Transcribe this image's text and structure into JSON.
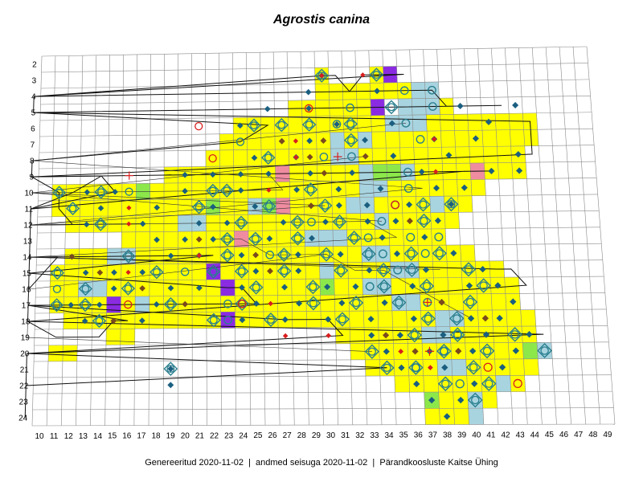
{
  "title": "Agrostis canina",
  "footer": "Genereeritud 2020-11-02  |  andmed seisuga 2020-11-02  |  Pärandkoosluste Kaitse Ühing",
  "grid": {
    "cols": [
      10,
      11,
      12,
      13,
      14,
      15,
      16,
      17,
      18,
      19,
      20,
      21,
      22,
      23,
      24,
      25,
      26,
      27,
      28,
      29,
      30,
      31,
      32,
      33,
      34,
      35,
      36,
      37,
      38,
      39,
      40,
      41,
      42,
      43,
      44,
      45,
      46,
      47,
      48,
      49
    ],
    "rows": [
      2,
      3,
      4,
      5,
      6,
      7,
      8,
      9,
      10,
      11,
      12,
      13,
      14,
      15,
      16,
      17,
      18,
      19,
      20,
      21,
      22,
      23,
      24
    ]
  },
  "colors": {
    "yellow": "#ffff00",
    "lightblue": "#a8d4e0",
    "green": "#8ce84a",
    "purple": "#8a2be2",
    "pink": "#f08ca0",
    "diamond": "#1a5f80",
    "brown_diamond": "#7a4a1e",
    "red_diamond": "#d81e1e",
    "circle": "#2a7f8f"
  },
  "map_data": {
    "yellow_ranges": [
      [
        "3",
        30,
        30
      ],
      [
        "3",
        34,
        35
      ],
      [
        "4",
        30,
        34
      ],
      [
        "4",
        35,
        36
      ],
      [
        "5",
        28,
        34
      ],
      [
        "5",
        36,
        39
      ],
      [
        "6",
        24,
        38
      ],
      [
        "6",
        39,
        45
      ],
      [
        "7",
        23,
        43
      ],
      [
        "7",
        44,
        45
      ],
      [
        "8",
        22,
        44
      ],
      [
        "9",
        19,
        44
      ],
      [
        "10",
        11,
        41
      ],
      [
        "11",
        11,
        40
      ],
      [
        "12",
        12,
        39
      ],
      [
        "13",
        16,
        38
      ],
      [
        "14",
        12,
        40
      ],
      [
        "15",
        11,
        42
      ],
      [
        "16",
        11,
        43
      ],
      [
        "17",
        11,
        43
      ],
      [
        "18",
        12,
        44
      ],
      [
        "19",
        15,
        16
      ],
      [
        "19",
        31,
        44
      ],
      [
        "20",
        11,
        12
      ],
      [
        "20",
        32,
        45
      ],
      [
        "21",
        33,
        44
      ],
      [
        "22",
        35,
        43
      ],
      [
        "23",
        37,
        41
      ],
      [
        "24",
        37,
        39
      ]
    ],
    "lightblue_cells": [
      [
        "4",
        37
      ],
      [
        "4",
        38
      ],
      [
        "5",
        36
      ],
      [
        "5",
        37
      ],
      [
        "5",
        38
      ],
      [
        "6",
        35
      ],
      [
        "6",
        36
      ],
      [
        "6",
        37
      ],
      [
        "7",
        31
      ],
      [
        "7",
        33
      ],
      [
        "8",
        31
      ],
      [
        "8",
        32
      ],
      [
        "9",
        33
      ],
      [
        "9",
        34
      ],
      [
        "9",
        35
      ],
      [
        "9",
        36
      ],
      [
        "10",
        17
      ],
      [
        "10",
        33
      ],
      [
        "10",
        34
      ],
      [
        "11",
        25
      ],
      [
        "11",
        32
      ],
      [
        "11",
        33
      ],
      [
        "11",
        38
      ],
      [
        "12",
        20
      ],
      [
        "12",
        21
      ],
      [
        "12",
        34
      ],
      [
        "13",
        29
      ],
      [
        "13",
        30
      ],
      [
        "13",
        31
      ],
      [
        "14",
        15
      ],
      [
        "14",
        16
      ],
      [
        "14",
        33
      ],
      [
        "14",
        34
      ],
      [
        "15",
        30
      ],
      [
        "15",
        35
      ],
      [
        "15",
        36
      ],
      [
        "16",
        13
      ],
      [
        "16",
        14
      ],
      [
        "16",
        33
      ],
      [
        "16",
        34
      ],
      [
        "17",
        17
      ],
      [
        "17",
        35
      ],
      [
        "17",
        36
      ],
      [
        "18",
        38
      ],
      [
        "18",
        39
      ],
      [
        "19",
        37
      ],
      [
        "19",
        38
      ],
      [
        "20",
        44
      ],
      [
        "20",
        45
      ],
      [
        "21",
        38
      ],
      [
        "21",
        39
      ],
      [
        "22",
        42
      ],
      [
        "23",
        40
      ],
      [
        "24",
        40
      ]
    ],
    "green_cells": [
      [
        "9",
        34
      ],
      [
        "9",
        35
      ],
      [
        "11",
        22
      ],
      [
        "11",
        26
      ],
      [
        "10",
        17
      ],
      [
        "16",
        30
      ],
      [
        "20",
        44
      ],
      [
        "23",
        37
      ]
    ],
    "purple_cells": [
      [
        "3",
        35
      ],
      [
        "5",
        34
      ],
      [
        "15",
        22
      ],
      [
        "16",
        23
      ],
      [
        "17",
        15
      ],
      [
        "18",
        23
      ]
    ],
    "pink_cells": [
      [
        "9",
        27
      ],
      [
        "11",
        27
      ],
      [
        "13",
        24
      ],
      [
        "9",
        41
      ]
    ],
    "diamond_cells": [
      [
        "3",
        30
      ],
      [
        "4",
        29
      ],
      [
        "4",
        34
      ],
      [
        "5",
        26
      ],
      [
        "5",
        29
      ],
      [
        "5",
        40
      ],
      [
        "5",
        44
      ],
      [
        "6",
        24
      ],
      [
        "6",
        31
      ],
      [
        "6",
        35
      ],
      [
        "6",
        42
      ],
      [
        "7",
        27
      ],
      [
        "7",
        29
      ],
      [
        "7",
        33
      ],
      [
        "7",
        38
      ],
      [
        "7",
        41
      ],
      [
        "8",
        25
      ],
      [
        "8",
        28
      ],
      [
        "8",
        35
      ],
      [
        "8",
        39
      ],
      [
        "8",
        44
      ],
      [
        "9",
        20
      ],
      [
        "9",
        22
      ],
      [
        "9",
        24
      ],
      [
        "9",
        26
      ],
      [
        "9",
        29
      ],
      [
        "9",
        32
      ],
      [
        "9",
        37
      ],
      [
        "9",
        42
      ],
      [
        "9",
        44
      ],
      [
        "10",
        13
      ],
      [
        "10",
        15
      ],
      [
        "10",
        20
      ],
      [
        "10",
        24
      ],
      [
        "10",
        28
      ],
      [
        "10",
        31
      ],
      [
        "10",
        34
      ],
      [
        "10",
        38
      ],
      [
        "10",
        40
      ],
      [
        "11",
        14
      ],
      [
        "11",
        18
      ],
      [
        "11",
        22
      ],
      [
        "11",
        25
      ],
      [
        "11",
        29
      ],
      [
        "11",
        31
      ],
      [
        "11",
        33
      ],
      [
        "11",
        36
      ],
      [
        "11",
        39
      ],
      [
        "12",
        13
      ],
      [
        "12",
        17
      ],
      [
        "12",
        21
      ],
      [
        "12",
        23
      ],
      [
        "12",
        27
      ],
      [
        "12",
        30
      ],
      [
        "12",
        33
      ],
      [
        "12",
        35
      ],
      [
        "12",
        38
      ],
      [
        "13",
        18
      ],
      [
        "13",
        20
      ],
      [
        "13",
        22
      ],
      [
        "13",
        26
      ],
      [
        "13",
        29
      ],
      [
        "13",
        34
      ],
      [
        "13",
        37
      ],
      [
        "14",
        12
      ],
      [
        "14",
        19
      ],
      [
        "14",
        21
      ],
      [
        "14",
        24
      ],
      [
        "14",
        28
      ],
      [
        "14",
        31
      ],
      [
        "14",
        35
      ],
      [
        "14",
        39
      ],
      [
        "15",
        13
      ],
      [
        "15",
        15
      ],
      [
        "15",
        17
      ],
      [
        "15",
        25
      ],
      [
        "15",
        28
      ],
      [
        "15",
        33
      ],
      [
        "15",
        37
      ],
      [
        "15",
        41
      ],
      [
        "16",
        15
      ],
      [
        "16",
        19
      ],
      [
        "16",
        21
      ],
      [
        "16",
        24
      ],
      [
        "16",
        27
      ],
      [
        "16",
        30
      ],
      [
        "16",
        32
      ],
      [
        "16",
        36
      ],
      [
        "16",
        40
      ],
      [
        "16",
        42
      ],
      [
        "17",
        12
      ],
      [
        "17",
        14
      ],
      [
        "17",
        18
      ],
      [
        "17",
        25
      ],
      [
        "17",
        28
      ],
      [
        "17",
        31
      ],
      [
        "17",
        34
      ],
      [
        "17",
        38
      ],
      [
        "17",
        43
      ],
      [
        "18",
        13
      ],
      [
        "18",
        17
      ],
      [
        "18",
        24
      ],
      [
        "18",
        27
      ],
      [
        "18",
        30
      ],
      [
        "18",
        33
      ],
      [
        "18",
        36
      ],
      [
        "18",
        40
      ],
      [
        "18",
        42
      ],
      [
        "19",
        33
      ],
      [
        "19",
        35
      ],
      [
        "19",
        38
      ],
      [
        "19",
        41
      ],
      [
        "19",
        44
      ],
      [
        "20",
        34
      ],
      [
        "20",
        37
      ],
      [
        "20",
        40
      ],
      [
        "20",
        43
      ],
      [
        "21",
        35
      ],
      [
        "21",
        38
      ],
      [
        "21",
        42
      ],
      [
        "22",
        36
      ],
      [
        "22",
        40
      ],
      [
        "23",
        37
      ],
      [
        "23",
        39
      ],
      [
        "24",
        38
      ],
      [
        "21",
        19
      ],
      [
        "22",
        19
      ]
    ],
    "brown_cells": [
      [
        "7",
        27
      ],
      [
        "7",
        30
      ],
      [
        "8",
        29
      ],
      [
        "8",
        33
      ],
      [
        "9",
        30
      ],
      [
        "11",
        29
      ],
      [
        "12",
        36
      ],
      [
        "13",
        21
      ],
      [
        "14",
        12
      ],
      [
        "15",
        14
      ],
      [
        "16",
        17
      ],
      [
        "17",
        20
      ],
      [
        "18",
        15
      ],
      [
        "19",
        34
      ],
      [
        "20",
        36
      ],
      [
        "14",
        25
      ],
      [
        "15",
        26
      ],
      [
        "17",
        38
      ],
      [
        "18",
        41
      ],
      [
        "20",
        39
      ]
    ],
    "red_cells": [
      [
        "3",
        30
      ],
      [
        "3",
        33
      ],
      [
        "7",
        28
      ],
      [
        "8",
        28
      ],
      [
        "10",
        26
      ],
      [
        "11",
        16
      ],
      [
        "12",
        16
      ],
      [
        "14",
        21
      ],
      [
        "15",
        16
      ],
      [
        "17",
        26
      ],
      [
        "19",
        27
      ],
      [
        "19",
        30
      ],
      [
        "20",
        35
      ],
      [
        "21",
        37
      ],
      [
        "7",
        38
      ],
      [
        "9",
        38
      ]
    ],
    "ring_cells": [
      [
        "3",
        30
      ],
      [
        "3",
        34
      ],
      [
        "5",
        35
      ],
      [
        "6",
        25
      ],
      [
        "6",
        27
      ],
      [
        "6",
        29
      ],
      [
        "6",
        32
      ],
      [
        "7",
        32
      ],
      [
        "8",
        26
      ],
      [
        "10",
        11
      ],
      [
        "10",
        14
      ],
      [
        "10",
        22
      ],
      [
        "10",
        23
      ],
      [
        "10",
        29
      ],
      [
        "11",
        12
      ],
      [
        "11",
        21
      ],
      [
        "11",
        26
      ],
      [
        "11",
        30
      ],
      [
        "11",
        37
      ],
      [
        "11",
        39
      ],
      [
        "12",
        14
      ],
      [
        "12",
        24
      ],
      [
        "12",
        28
      ],
      [
        "12",
        31
      ],
      [
        "12",
        37
      ],
      [
        "13",
        23
      ],
      [
        "13",
        25
      ],
      [
        "13",
        28
      ],
      [
        "13",
        32
      ],
      [
        "14",
        16
      ],
      [
        "14",
        23
      ],
      [
        "14",
        27
      ],
      [
        "14",
        30
      ],
      [
        "14",
        33
      ],
      [
        "14",
        36
      ],
      [
        "14",
        38
      ],
      [
        "15",
        11
      ],
      [
        "15",
        18
      ],
      [
        "15",
        22
      ],
      [
        "15",
        24
      ],
      [
        "15",
        27
      ],
      [
        "15",
        31
      ],
      [
        "15",
        34
      ],
      [
        "15",
        36
      ],
      [
        "15",
        40
      ],
      [
        "16",
        13
      ],
      [
        "16",
        16
      ],
      [
        "16",
        25
      ],
      [
        "16",
        29
      ],
      [
        "16",
        34
      ],
      [
        "16",
        37
      ],
      [
        "16",
        41
      ],
      [
        "17",
        11
      ],
      [
        "17",
        13
      ],
      [
        "17",
        19
      ],
      [
        "17",
        24
      ],
      [
        "17",
        29
      ],
      [
        "17",
        32
      ],
      [
        "17",
        35
      ],
      [
        "17",
        40
      ],
      [
        "18",
        14
      ],
      [
        "18",
        22
      ],
      [
        "18",
        26
      ],
      [
        "18",
        31
      ],
      [
        "18",
        37
      ],
      [
        "18",
        39
      ],
      [
        "19",
        36
      ],
      [
        "19",
        39
      ],
      [
        "19",
        43
      ],
      [
        "20",
        33
      ],
      [
        "20",
        38
      ],
      [
        "20",
        41
      ],
      [
        "20",
        45
      ],
      [
        "21",
        34
      ],
      [
        "21",
        36
      ],
      [
        "21",
        40
      ],
      [
        "22",
        38
      ],
      [
        "22",
        41
      ],
      [
        "23",
        40
      ],
      [
        "21",
        19
      ]
    ],
    "circle_cells": [
      [
        "4",
        36
      ],
      [
        "4",
        38
      ],
      [
        "5",
        32
      ],
      [
        "5",
        38
      ],
      [
        "6",
        31
      ],
      [
        "6",
        36
      ],
      [
        "7",
        24
      ],
      [
        "7",
        37
      ],
      [
        "8",
        30
      ],
      [
        "8",
        32
      ],
      [
        "9",
        36
      ],
      [
        "10",
        16
      ],
      [
        "10",
        36
      ],
      [
        "11",
        35
      ],
      [
        "12",
        29
      ],
      [
        "12",
        34
      ],
      [
        "13",
        33
      ],
      [
        "13",
        36
      ],
      [
        "14",
        26
      ],
      [
        "14",
        34
      ],
      [
        "15",
        20
      ],
      [
        "15",
        35
      ],
      [
        "16",
        11
      ],
      [
        "16",
        33
      ],
      [
        "17",
        23
      ],
      [
        "17",
        37
      ],
      [
        "18",
        23
      ],
      [
        "19",
        39
      ],
      [
        "20",
        38
      ],
      [
        "21",
        36
      ],
      [
        "22",
        39
      ],
      [
        "13",
        38
      ],
      [
        "14",
        37
      ]
    ],
    "red_circle_cells": [
      [
        "6",
        21
      ],
      [
        "8",
        22
      ],
      [
        "5",
        29
      ],
      [
        "17",
        16
      ],
      [
        "21",
        41
      ],
      [
        "22",
        43
      ],
      [
        "17",
        24
      ],
      [
        "11",
        35
      ]
    ],
    "plus_cells": [
      [
        "9",
        16
      ],
      [
        "8",
        31
      ],
      [
        "17",
        37
      ],
      [
        "20",
        37
      ]
    ],
    "map_note": ""
  }
}
